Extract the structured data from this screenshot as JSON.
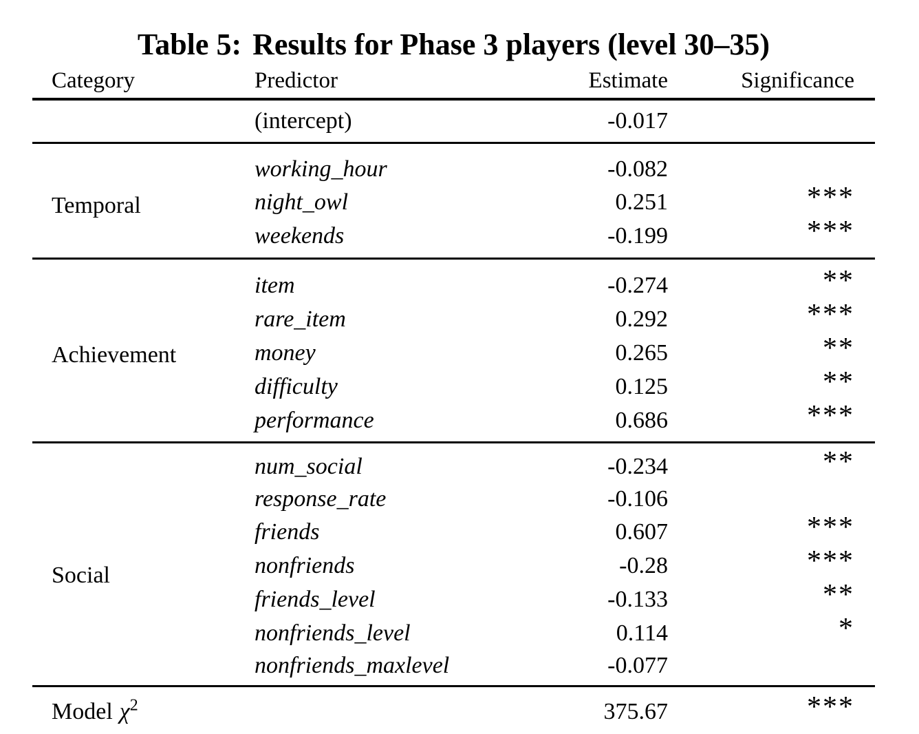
{
  "caption": {
    "label": "Table 5:",
    "text": "Results for Phase 3 players (level 30–35)"
  },
  "columns": {
    "category": "Category",
    "predictor": "Predictor",
    "estimate": "Estimate",
    "significance": "Significance"
  },
  "sections": [
    {
      "category": "",
      "rows": [
        {
          "predictor": "(intercept)",
          "estimate": "-0.017",
          "significance": ""
        }
      ]
    },
    {
      "category": "Temporal",
      "rows": [
        {
          "predictor": "working_hour",
          "estimate": "-0.082",
          "significance": ""
        },
        {
          "predictor": "night_owl",
          "estimate": "0.251",
          "significance": "***"
        },
        {
          "predictor": "weekends",
          "estimate": "-0.199",
          "significance": "***"
        }
      ]
    },
    {
      "category": "Achievement",
      "rows": [
        {
          "predictor": "item",
          "estimate": "-0.274",
          "significance": "**"
        },
        {
          "predictor": "rare_item",
          "estimate": "0.292",
          "significance": "***"
        },
        {
          "predictor": "money",
          "estimate": "0.265",
          "significance": "**"
        },
        {
          "predictor": "difficulty",
          "estimate": "0.125",
          "significance": "**"
        },
        {
          "predictor": "performance",
          "estimate": "0.686",
          "significance": "***"
        }
      ]
    },
    {
      "category": "Social",
      "rows": [
        {
          "predictor": "num_social",
          "estimate": "-0.234",
          "significance": "**"
        },
        {
          "predictor": "response_rate",
          "estimate": "-0.106",
          "significance": ""
        },
        {
          "predictor": "friends",
          "estimate": "0.607",
          "significance": "***"
        },
        {
          "predictor": "nonfriends",
          "estimate": "-0.28",
          "significance": "***"
        },
        {
          "predictor": "friends_level",
          "estimate": "-0.133",
          "significance": "**"
        },
        {
          "predictor": "nonfriends_level",
          "estimate": "0.114",
          "significance": "*"
        },
        {
          "predictor": "nonfriends_maxlevel",
          "estimate": "-0.077",
          "significance": ""
        }
      ]
    }
  ],
  "model_row": {
    "label": "Model",
    "chi": "χ",
    "exponent": "2",
    "estimate": "375.67",
    "significance": "***"
  }
}
